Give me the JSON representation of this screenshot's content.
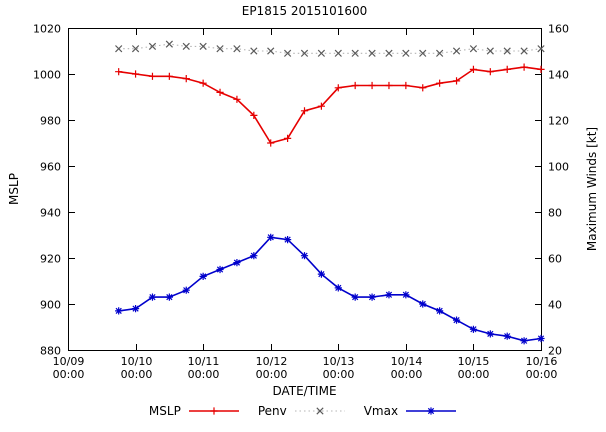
{
  "chart_data": {
    "type": "line",
    "title": "EP1815 2015101600",
    "xlabel": "DATE/TIME",
    "ylabel_left": "MSLP",
    "ylabel_right": "Maximum Winds [kt]",
    "grid": false,
    "legend_position": "bottom-center",
    "x_range_hours": [
      0,
      168
    ],
    "x_ticks_hours": [
      0,
      24,
      48,
      72,
      96,
      120,
      144,
      168
    ],
    "x_tick_labels": [
      [
        "10/09",
        "00:00"
      ],
      [
        "10/10",
        "00:00"
      ],
      [
        "10/11",
        "00:00"
      ],
      [
        "10/12",
        "00:00"
      ],
      [
        "10/13",
        "00:00"
      ],
      [
        "10/14",
        "00:00"
      ],
      [
        "10/15",
        "00:00"
      ],
      [
        "10/16",
        "00:00"
      ]
    ],
    "ylim_left": [
      880,
      1020
    ],
    "yticks_left": [
      880,
      900,
      920,
      940,
      960,
      980,
      1000,
      1020
    ],
    "ylim_right": [
      20,
      160
    ],
    "yticks_right": [
      20,
      40,
      60,
      80,
      100,
      120,
      140,
      160
    ],
    "x_hours": [
      18,
      24,
      30,
      36,
      42,
      48,
      54,
      60,
      66,
      72,
      78,
      84,
      90,
      96,
      102,
      108,
      114,
      120,
      126,
      132,
      138,
      144,
      150,
      156,
      162,
      168
    ],
    "series": [
      {
        "name": "MSLP",
        "axis": "left",
        "unit": "hPa",
        "color": "#e60000",
        "marker": "plus",
        "line_style": "solid",
        "values": [
          1001,
          1000,
          999,
          999,
          998,
          996,
          992,
          989,
          982,
          970,
          972,
          984,
          986,
          994,
          995,
          995,
          995,
          995,
          994,
          996,
          997,
          1002,
          1001,
          1002,
          1003,
          1002
        ]
      },
      {
        "name": "Penv",
        "axis": "left",
        "unit": "hPa",
        "color": "#b4b4b4",
        "marker_color": "#5a5a5a",
        "marker": "cross",
        "line_style": "dotted",
        "values": [
          1011,
          1011,
          1012,
          1013,
          1012,
          1012,
          1011,
          1011,
          1010,
          1010,
          1009,
          1009,
          1009,
          1009,
          1009,
          1009,
          1009,
          1009,
          1009,
          1009,
          1010,
          1011,
          1010,
          1010,
          1010,
          1011
        ]
      },
      {
        "name": "Vmax",
        "axis": "right",
        "unit": "kt",
        "color": "#0000cc",
        "marker": "asterisk",
        "line_style": "solid",
        "values": [
          37,
          38,
          43,
          43,
          46,
          52,
          55,
          58,
          61,
          69,
          68,
          61,
          53,
          47,
          43,
          43,
          44,
          44,
          40,
          37,
          33,
          29,
          27,
          26,
          24,
          25
        ]
      }
    ]
  }
}
